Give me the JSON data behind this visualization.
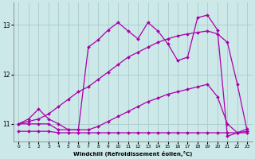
{
  "xlabel": "Windchill (Refroidissement éolien,°C)",
  "background_color": "#cce8e8",
  "grid_color": "#aacccc",
  "line_color": "#aa00aa",
  "xlim": [
    -0.5,
    23.5
  ],
  "ylim": [
    10.65,
    13.45
  ],
  "yticks": [
    11,
    12,
    13
  ],
  "xticks": [
    0,
    1,
    2,
    3,
    4,
    5,
    6,
    7,
    8,
    9,
    10,
    11,
    12,
    13,
    14,
    15,
    16,
    17,
    18,
    19,
    20,
    21,
    22,
    23
  ],
  "series": [
    {
      "x": [
        0,
        1,
        2,
        3,
        4,
        5,
        6,
        7,
        8,
        9,
        10,
        11,
        12,
        13,
        14,
        15,
        16,
        17,
        18,
        19,
        20,
        21,
        22,
        23
      ],
      "y": [
        10.85,
        10.85,
        10.85,
        10.85,
        10.82,
        10.82,
        10.82,
        10.82,
        10.82,
        10.82,
        10.82,
        10.82,
        10.82,
        10.82,
        10.82,
        10.82,
        10.82,
        10.82,
        10.82,
        10.82,
        10.82,
        10.82,
        10.82,
        10.82
      ]
    },
    {
      "x": [
        0,
        1,
        2,
        3,
        4,
        5,
        6,
        7,
        8,
        9,
        10,
        11,
        12,
        13,
        14,
        15,
        16,
        17,
        18,
        19,
        20,
        21,
        22,
        23
      ],
      "y": [
        11.0,
        11.0,
        11.0,
        11.0,
        10.88,
        10.88,
        10.88,
        10.88,
        10.95,
        11.05,
        11.15,
        11.25,
        11.35,
        11.45,
        11.52,
        11.6,
        11.65,
        11.7,
        11.75,
        11.8,
        11.55,
        11.0,
        10.82,
        10.85
      ]
    },
    {
      "x": [
        0,
        1,
        2,
        3,
        4,
        5,
        6,
        7,
        8,
        9,
        10,
        11,
        12,
        13,
        14,
        15,
        16,
        17,
        18,
        19,
        20,
        21,
        22,
        23
      ],
      "y": [
        11.0,
        11.05,
        11.1,
        11.2,
        11.35,
        11.5,
        11.65,
        11.75,
        11.9,
        12.05,
        12.2,
        12.35,
        12.45,
        12.55,
        12.65,
        12.72,
        12.78,
        12.82,
        12.85,
        12.88,
        12.82,
        12.65,
        11.8,
        10.85
      ]
    },
    {
      "x": [
        0,
        1,
        2,
        3,
        4,
        5,
        6,
        7,
        8,
        9,
        10,
        11,
        12,
        13,
        14,
        15,
        16,
        17,
        18,
        19,
        20,
        21,
        22,
        23
      ],
      "y": [
        11.0,
        11.1,
        11.3,
        11.1,
        11.0,
        10.88,
        10.88,
        12.55,
        12.7,
        12.9,
        13.05,
        12.88,
        12.72,
        13.05,
        12.88,
        12.62,
        12.28,
        12.35,
        13.15,
        13.2,
        12.9,
        10.75,
        10.82,
        10.9
      ]
    }
  ]
}
